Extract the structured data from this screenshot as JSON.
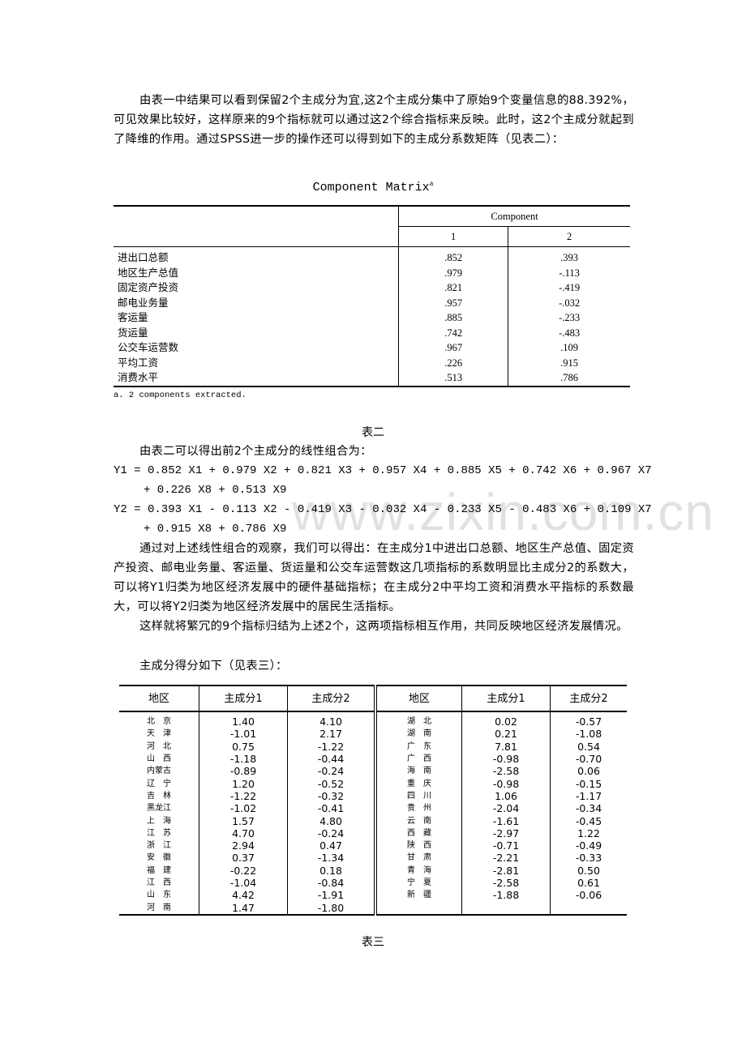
{
  "para1": "由表一中结果可以看到保留2个主成分为宜,这2个主成分集中了原始9个变量信息的88.392%，可见效果比较好，这样原来的9个指标就可以通过这2个综合指标来反映。此时，这2个主成分就起到了降维的作用。通过SPSS进一步的操作还可以得到如下的主成分系数矩阵（见表二）：",
  "table1": {
    "title": "Component Matrix",
    "title_sup": "a",
    "group_header": "Component",
    "col_headers": [
      "1",
      "2"
    ],
    "rows": [
      [
        "进出口总额",
        ".852",
        ".393"
      ],
      [
        "地区生产总值",
        ".979",
        "-.113"
      ],
      [
        "固定资产投资",
        ".821",
        "-.419"
      ],
      [
        "邮电业务量",
        ".957",
        "-.032"
      ],
      [
        "客运量",
        ".885",
        "-.233"
      ],
      [
        "货运量",
        ".742",
        "-.483"
      ],
      [
        "公交车运营数",
        ".967",
        ".109"
      ],
      [
        "平均工资",
        ".226",
        ".915"
      ],
      [
        "消费水平",
        ".513",
        ".786"
      ]
    ],
    "footnote": "a. 2 components extracted.",
    "caption": "表二"
  },
  "para2": "由表二可以得出前2个主成分的线性组合为：",
  "eq1a": "Y1 = 0.852 X1 + 0.979 X2 + 0.821 X3 + 0.957 X4 + 0.885 X5 + 0.742 X6 + 0.967 X7",
  "eq1b": "+ 0.226 X8 + 0.513 X9",
  "eq2a": "Y2 = 0.393 X1 - 0.113 X2 - 0.419 X3 - 0.032 X4 - 0.233 X5 - 0.483 X6 + 0.109 X7",
  "eq2b": "+ 0.915 X8 + 0.786 X9",
  "para3": "通过对上述线性组合的观察，我们可以得出：在主成分1中进出口总额、地区生产总值、固定资产投资、邮电业务量、客运量、货运量和公交车运营数这几项指标的系数明显比主成分2的系数大，可以将Y1归类为地区经济发展中的硬件基础指标；在主成分2中平均工资和消费水平指标的系数最大，可以将Y2归类为地区经济发展中的居民生活指标。",
  "para4": "这样就将繁冗的9个指标归结为上述2个，这两项指标相互作用，共同反映地区经济发展情况。",
  "para5": "主成分得分如下（见表三）：",
  "table3": {
    "headers": [
      "地区",
      "主成分1",
      "主成分2"
    ],
    "left": [
      [
        "北　京",
        "1.40",
        "4.10"
      ],
      [
        "天　津",
        "-1.01",
        "2.17"
      ],
      [
        "河　北",
        "0.75",
        "-1.22"
      ],
      [
        "山　西",
        "-1.18",
        "-0.44"
      ],
      [
        "内蒙古",
        "-0.89",
        "-0.24"
      ],
      [
        "辽　宁",
        "1.20",
        "-0.52"
      ],
      [
        "吉　林",
        "-1.22",
        "-0.32"
      ],
      [
        "黑龙江",
        "-1.02",
        "-0.41"
      ],
      [
        "上　海",
        "1.57",
        "4.80"
      ],
      [
        "江　苏",
        "4.70",
        "-0.24"
      ],
      [
        "浙　江",
        "2.94",
        "0.47"
      ],
      [
        "安　徽",
        "0.37",
        "-1.34"
      ],
      [
        "福　建",
        "-0.22",
        "0.18"
      ],
      [
        "江　西",
        "-1.04",
        "-0.84"
      ],
      [
        "山　东",
        "4.42",
        "-1.91"
      ],
      [
        "河　南",
        "1.47",
        "-1.80"
      ]
    ],
    "right": [
      [
        "湖　北",
        "0.02",
        "-0.57"
      ],
      [
        "湖　南",
        "0.21",
        "-1.08"
      ],
      [
        "广　东",
        "7.81",
        "0.54"
      ],
      [
        "广　西",
        "-0.98",
        "-0.70"
      ],
      [
        "海　南",
        "-2.58",
        "0.06"
      ],
      [
        "重　庆",
        "-0.98",
        "-0.15"
      ],
      [
        "四　川",
        "1.06",
        "-1.17"
      ],
      [
        "贵　州",
        "-2.04",
        "-0.34"
      ],
      [
        "云　南",
        "-1.61",
        "-0.45"
      ],
      [
        "西　藏",
        "-2.97",
        "1.22"
      ],
      [
        "陕　西",
        "-0.71",
        "-0.49"
      ],
      [
        "甘　肃",
        "-2.21",
        "-0.33"
      ],
      [
        "青　海",
        "-2.81",
        "0.50"
      ],
      [
        "宁　夏",
        "-2.58",
        "0.61"
      ],
      [
        "新　疆",
        "-1.88",
        "-0.06"
      ]
    ],
    "caption": "表三"
  },
  "watermark": "www.zixin.com.cn"
}
